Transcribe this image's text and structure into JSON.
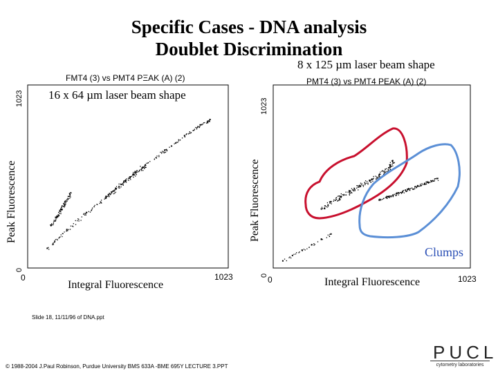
{
  "slide": {
    "title_line1": "Specific Cases - DNA analysis",
    "title_line2": "Doublet Discrimination"
  },
  "left_plot": {
    "header": "FMT4 (3) vs PMT4 PΞAK (A) (2)",
    "beam_label": "16 x 64  µm laser beam shape",
    "ylabel": "Peak Fluorescence",
    "xlabel": "Integral Fluorescence",
    "x_min_tick": "0",
    "x_max_tick": "1023",
    "y_min_tick": "0",
    "y_max_tick": "1023"
  },
  "right_plot": {
    "beam_label": "8 x 125  µm laser beam shape",
    "header": "PMT4 (3) vs PMT4 PEAK (A) (2)",
    "ylabel": "Peak Fluorescence",
    "xlabel": "Integral Fluorescence",
    "x_min_tick": "0",
    "x_max_tick": "1023",
    "y_min_tick": "0",
    "y_max_tick": "1023",
    "annotation": "Clumps"
  },
  "footer": {
    "slide_ref": "Slide 18, 11/11/96 of DNA.ppt",
    "copyright": "© 1988-2004 J.Paul Robinson, Purdue University  BMS 633A -BME 695Y  LECTURE 3.PPT"
  },
  "logo": {
    "text": "PUCL",
    "subtext": "cytometry laboratories"
  },
  "colors": {
    "singlet_outline": "#c8102e",
    "clump_outline": "#5b8fd6",
    "clumps_text": "#2a4fb5",
    "points": "#000000"
  },
  "chart_data": [
    {
      "type": "scatter",
      "title": "FMT4 (3) vs PMT4 PΞAK (A) (2)",
      "subtitle": "16 x 64 µm laser beam shape",
      "xlabel": "Integral Fluorescence",
      "ylabel": "Peak Fluorescence",
      "xlim": [
        0,
        1023
      ],
      "ylim": [
        0,
        1023
      ],
      "series": [
        {
          "name": "diagonal-population",
          "x": [
            100,
            200,
            300,
            400,
            500,
            600,
            700,
            800,
            880,
            930
          ],
          "y": [
            110,
            215,
            310,
            400,
            490,
            575,
            660,
            740,
            800,
            830
          ]
        },
        {
          "name": "dense-cluster",
          "x": [
            400,
            450,
            500,
            550,
            600
          ],
          "y": [
            400,
            445,
            490,
            535,
            575
          ]
        },
        {
          "name": "offset-streak",
          "x": [
            120,
            150,
            170,
            190,
            220
          ],
          "y": [
            240,
            290,
            330,
            370,
            420
          ]
        }
      ],
      "grid": false
    },
    {
      "type": "scatter",
      "title": "PMT4 (3) vs PMT4 PEAK (A) (2)",
      "subtitle": "8 x 125 µm laser beam shape",
      "xlabel": "Integral Fluorescence",
      "ylabel": "Peak Fluorescence",
      "xlim": [
        0,
        1023
      ],
      "ylim": [
        0,
        1023
      ],
      "series": [
        {
          "name": "singlets",
          "x": [
            250,
            300,
            350,
            400,
            450,
            500,
            550,
            600,
            620
          ],
          "y": [
            330,
            370,
            400,
            430,
            460,
            490,
            520,
            560,
            600
          ]
        },
        {
          "name": "clumps",
          "x": [
            550,
            600,
            650,
            700,
            750,
            800,
            850
          ],
          "y": [
            380,
            400,
            420,
            440,
            460,
            480,
            500
          ]
        },
        {
          "name": "debris",
          "x": [
            50,
            100,
            150,
            200,
            250,
            300
          ],
          "y": [
            40,
            70,
            100,
            130,
            160,
            190
          ]
        }
      ],
      "annotation": "Clumps",
      "grid": false
    }
  ]
}
